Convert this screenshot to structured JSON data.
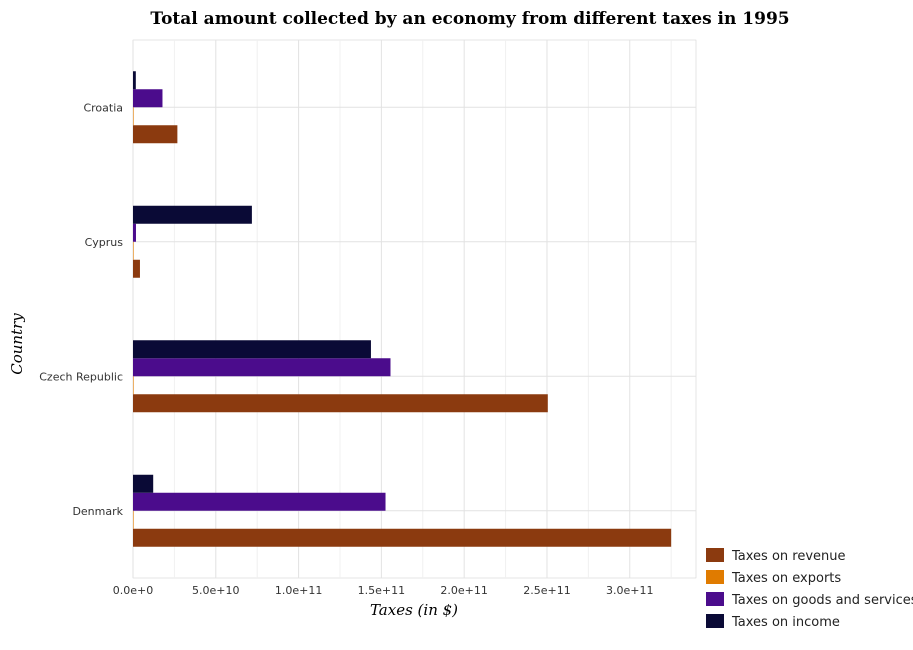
{
  "chart_data": {
    "type": "bar",
    "orientation": "horizontal",
    "title": "Total amount collected by an economy from different taxes in 1995",
    "xlabel": "Taxes (in $)",
    "ylabel": "Country",
    "categories": [
      "Croatia",
      "Cyprus",
      "Czech Republic",
      "Denmark"
    ],
    "x_ticks": [
      0,
      50000000000,
      100000000000,
      150000000000,
      200000000000,
      250000000000,
      300000000000
    ],
    "x_tick_labels": [
      "0.0e+0",
      "5.0e+10",
      "1.0e+11",
      "1.5e+11",
      "2.0e+11",
      "2.5e+11",
      "3.0e+11"
    ],
    "xlim": [
      0,
      340000000000
    ],
    "grid": true,
    "legend_position": "bottom-right",
    "series": [
      {
        "name": "Taxes on revenue",
        "color": "#8B3A0F",
        "values": [
          26800000000,
          4200000000,
          250500000000,
          325000000000
        ]
      },
      {
        "name": "Taxes on exports",
        "color": "#E07B00",
        "values": [
          30000000,
          20000000,
          300000000,
          10000000
        ]
      },
      {
        "name": "Taxes on goods and services",
        "color": "#4B0C8C",
        "values": [
          17800000000,
          1800000000,
          155500000000,
          152500000000
        ]
      },
      {
        "name": "Taxes on income",
        "color": "#0A0A36",
        "values": [
          1700000000,
          71800000000,
          143700000000,
          12200000000
        ]
      }
    ]
  }
}
